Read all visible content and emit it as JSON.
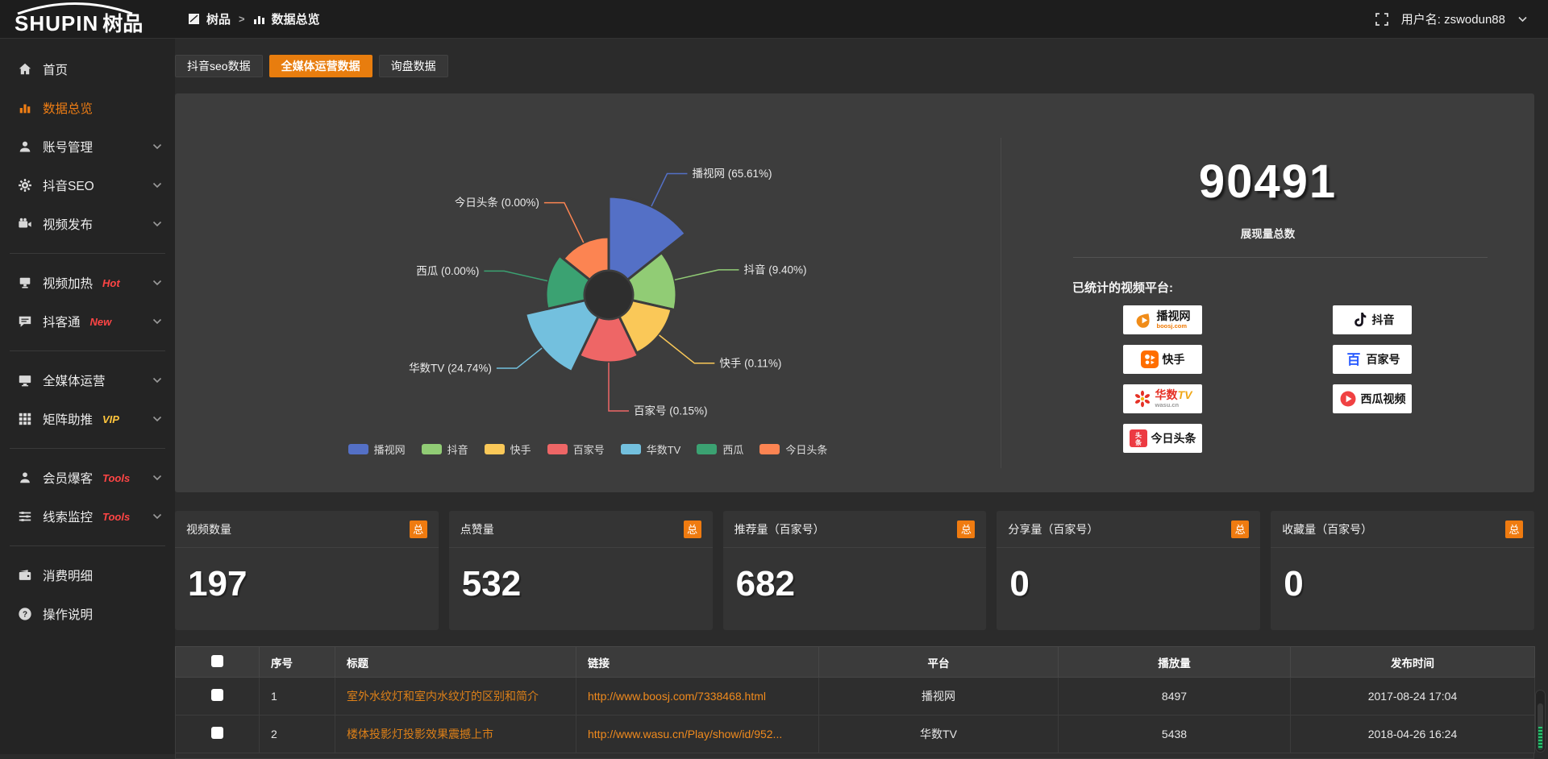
{
  "colors": {
    "accent": "#e87d0e",
    "panel_bg": "#3d3d3d",
    "tag_hot": "#ff4545",
    "tag_vip": "#ffc53d",
    "link": "#f08a1d",
    "title_link": "#dd8018"
  },
  "topbar": {
    "logo_en": "SHUPIN",
    "logo_cn": "树品",
    "breadcrumb": [
      "树品",
      "数据总览"
    ],
    "breadcrumb_sep": ">",
    "username": "用户名: zswodun88"
  },
  "sidebar": {
    "items": [
      {
        "label": "首页",
        "icon": "home-icon"
      },
      {
        "label": "数据总览",
        "icon": "bar-chart-icon",
        "active": true
      },
      {
        "label": "账号管理",
        "icon": "user-icon",
        "chevron": true
      },
      {
        "label": "抖音SEO",
        "icon": "gear-icon",
        "chevron": true
      },
      {
        "label": "视频发布",
        "icon": "video-icon",
        "chevron": true
      },
      {
        "divider": true
      },
      {
        "label": "视频加热",
        "icon": "heat-icon",
        "tag": "Hot",
        "tag_color": "#ff4545",
        "chevron": true
      },
      {
        "label": "抖客通",
        "icon": "chat-icon",
        "tag": "New",
        "tag_color": "#ff4545",
        "chevron": true
      },
      {
        "divider": true
      },
      {
        "label": "全媒体运营",
        "icon": "monitor-icon",
        "chevron": true
      },
      {
        "label": "矩阵助推",
        "icon": "grid-icon",
        "tag": "VIP",
        "tag_color": "#ffc53d",
        "chevron": true
      },
      {
        "divider": true
      },
      {
        "label": "会员爆客",
        "icon": "member-icon",
        "tag": "Tools",
        "tag_color": "#ff4545",
        "chevron": true
      },
      {
        "label": "线索监控",
        "icon": "sliders-icon",
        "tag": "Tools",
        "tag_color": "#ff4545",
        "chevron": true
      },
      {
        "divider": true
      },
      {
        "label": "消费明细",
        "icon": "wallet-icon"
      },
      {
        "label": "操作说明",
        "icon": "question-icon"
      }
    ]
  },
  "tabs": [
    {
      "label": "抖音seo数据",
      "active": false
    },
    {
      "label": "全媒体运营数据",
      "active": true
    },
    {
      "label": "询盘数据",
      "active": false
    }
  ],
  "chart_data": {
    "type": "pie",
    "variant": "nightingale-rose",
    "title": "",
    "legend_position": "bottom",
    "inner_radius": 30,
    "series": [
      {
        "name": "播视网",
        "value_pct": 65.61,
        "color": "#5470c6",
        "radius": 122,
        "elbow": 45
      },
      {
        "name": "抖音",
        "value_pct": 9.4,
        "color": "#91cc75",
        "radius": 84,
        "elbow": 56
      },
      {
        "name": "快手",
        "value_pct": 0.11,
        "color": "#fac858",
        "radius": 80,
        "elbow": 56
      },
      {
        "name": "百家号",
        "value_pct": 0.15,
        "color": "#ee6666",
        "radius": 84,
        "elbow": 60
      },
      {
        "name": "华数TV",
        "value_pct": 24.74,
        "color": "#73c0de",
        "radius": 106,
        "elbow": 40
      },
      {
        "name": "西瓜",
        "value_pct": 0.0,
        "color": "#3ba272",
        "radius": 78,
        "elbow": 55
      },
      {
        "name": "今日头条",
        "value_pct": 0.0,
        "color": "#fc8452",
        "radius": 72,
        "elbow": 55
      }
    ]
  },
  "summary": {
    "total_value": "90491",
    "total_label": "展现量总数",
    "platforms_label": "已统计的视频平台:",
    "platforms": [
      {
        "name": "播视网",
        "sub": "boosj.com",
        "logo": "boosj-logo"
      },
      {
        "name": "抖音",
        "logo": "douyin-logo"
      },
      {
        "name": "快手",
        "logo": "kuaishou-logo"
      },
      {
        "name": "百家号",
        "logo": "baijiahao-logo"
      },
      {
        "name": "华数TV",
        "name_red": "华数",
        "name_gold": "TV",
        "sub": "wasu.cn",
        "logo": "wasu-logo"
      },
      {
        "name": "西瓜视频",
        "logo": "xigua-logo"
      },
      {
        "name": "今日头条",
        "logo": "toutiao-logo"
      }
    ]
  },
  "stat_cards": [
    {
      "title": "视频数量",
      "badge": "总",
      "value": "197"
    },
    {
      "title": "点赞量",
      "badge": "总",
      "value": "532"
    },
    {
      "title": "推荐量（百家号）",
      "badge": "总",
      "value": "682"
    },
    {
      "title": "分享量（百家号）",
      "badge": "总",
      "value": "0"
    },
    {
      "title": "收藏量（百家号）",
      "badge": "总",
      "value": "0"
    }
  ],
  "table": {
    "columns": [
      "",
      "序号",
      "标题",
      "链接",
      "平台",
      "播放量",
      "发布时间"
    ],
    "rows": [
      {
        "checked": false,
        "index": "1",
        "title": "室外水纹灯和室内水纹灯的区别和简介",
        "link": "http://www.boosj.com/7338468.html",
        "platform": "播视网",
        "views": "8497",
        "time": "2017-08-24 17:04"
      },
      {
        "checked": false,
        "index": "2",
        "title": "楼体投影灯投影效果震撼上市",
        "link": "http://www.wasu.cn/Play/show/id/952...",
        "platform": "华数TV",
        "views": "5438",
        "time": "2018-04-26 16:24"
      }
    ]
  }
}
